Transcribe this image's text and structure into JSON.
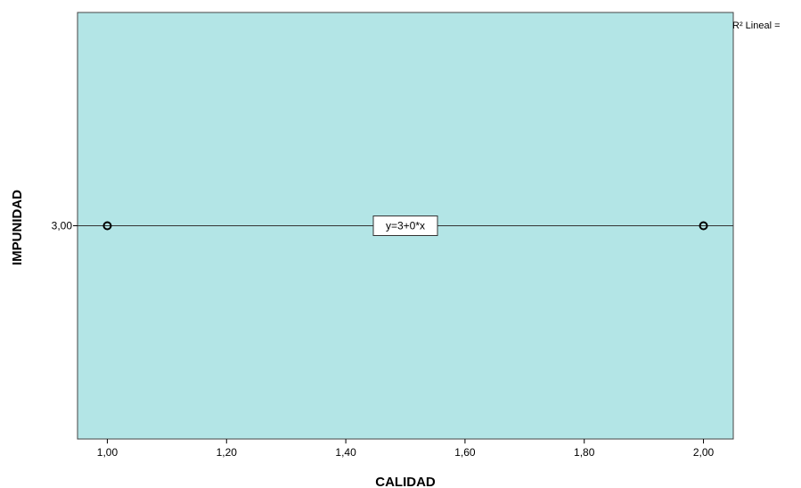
{
  "chart_data": {
    "type": "scatter",
    "xlabel": "CALIDAD",
    "ylabel": "IMPUNIDAD",
    "xlim": [
      0.95,
      2.05
    ],
    "ylim": [
      2.5,
      3.5
    ],
    "x_ticks": [
      1.0,
      1.2,
      1.4,
      1.6,
      1.8,
      2.0
    ],
    "x_tick_labels": [
      "1,00",
      "1,20",
      "1,40",
      "1,60",
      "1,80",
      "2,00"
    ],
    "y_ticks": [
      3.0
    ],
    "y_tick_labels": [
      "3,00"
    ],
    "points": [
      {
        "x": 1.0,
        "y": 3.0
      },
      {
        "x": 2.0,
        "y": 3.0
      }
    ],
    "fit_line": {
      "intercept": 3,
      "slope": 0,
      "label": "y=3+0*x"
    },
    "legend_text": "R² Lineal =",
    "plot_background": "#b3e5e6",
    "grid": false,
    "legend_position": "top-right"
  }
}
